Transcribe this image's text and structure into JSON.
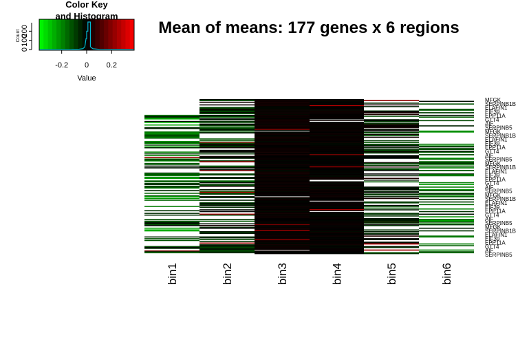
{
  "chart_data": {
    "type": "heatmap",
    "title": "Mean of means: 177 genes x 6 regions",
    "columns": [
      "bin1",
      "bin2",
      "bin3",
      "bin4",
      "bin5",
      "bin6"
    ],
    "n_rows": 177,
    "row_labels_visible": [
      "MFGK",
      "SERPINB1B",
      "ELAFIN1",
      "EIF39",
      "EPP11A",
      "GTT4",
      "AIF",
      "SERPINB5"
    ],
    "color_key": {
      "title_line1": "Color Key",
      "title_line2": "and Histogram",
      "xlabel": "Value",
      "ylabel": "Count",
      "x_ticks": [
        "-0.2",
        "0",
        "0.2"
      ],
      "y_ticks": [
        "0",
        "100",
        "200"
      ],
      "range": [
        -0.38,
        0.38
      ],
      "colors": [
        "#00ff00",
        "#000000",
        "#ff0000"
      ],
      "histogram_peak_value": 0.02,
      "histogram_peak_count": 300
    }
  }
}
